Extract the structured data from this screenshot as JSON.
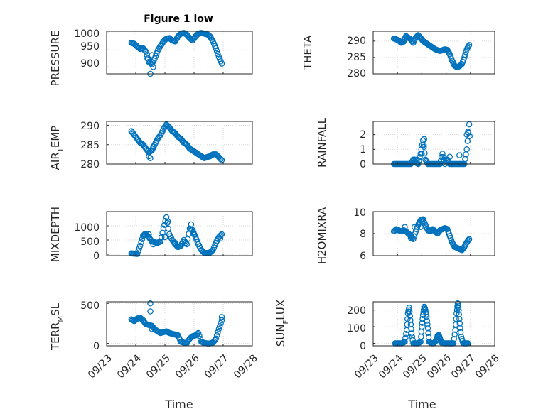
{
  "figure": {
    "title": "Figure 1 low"
  },
  "colors": {
    "marker": "#0072BD",
    "axis": "#262626",
    "grid": "#d9d9d9",
    "background": "#ffffff"
  },
  "chart_data": [
    {
      "id": "pressure",
      "type": "scatter",
      "title": "Figure 1 low",
      "xlabel": "",
      "ylabel": "PRESSURE",
      "xlim": [
        "09/23",
        "09/28"
      ],
      "ylim": [
        880,
        1005
      ],
      "yticks": [
        900,
        950,
        1000
      ],
      "yticklabels": [
        "900",
        "950",
        "1000"
      ],
      "xticks": [
        "09/23",
        "09/24",
        "09/25",
        "09/26",
        "09/27",
        "09/28"
      ],
      "show_xticklabels": false,
      "grid": true,
      "x": [
        0.85,
        0.95,
        1.05,
        1.15,
        1.25,
        1.35,
        1.45,
        1.55,
        1.65,
        1.75,
        1.85,
        1.95,
        2.05,
        2.15,
        2.25,
        2.35,
        2.45,
        2.55,
        2.65,
        2.75,
        2.85,
        2.95,
        3.05,
        3.15,
        3.25,
        3.35,
        3.45,
        3.55,
        3.65,
        3.75,
        3.85,
        3.95
      ],
      "y": [
        971,
        968,
        960,
        953,
        955,
        945,
        915,
        908,
        925,
        948,
        962,
        975,
        983,
        985,
        978,
        975,
        990,
        998,
        1000,
        995,
        985,
        978,
        990,
        998,
        1000,
        998,
        996,
        990,
        975,
        955,
        930,
        910
      ],
      "series": [
        {
          "name": "",
          "x": [
            1.5,
            1.4,
            1.55,
            1.6
          ],
          "y": [
            880,
            925,
            935,
            900
          ]
        }
      ]
    },
    {
      "id": "theta",
      "type": "scatter",
      "xlabel": "",
      "ylabel": "THETA",
      "xlim": [
        "09/23",
        "09/28"
      ],
      "ylim": [
        280,
        293
      ],
      "yticks": [
        280,
        285,
        290
      ],
      "yticklabels": [
        "280",
        "285",
        "290"
      ],
      "xticks": [
        "09/23",
        "09/24",
        "09/25",
        "09/26",
        "09/27",
        "09/28"
      ],
      "show_xticklabels": false,
      "grid": true,
      "x": [
        0.85,
        0.95,
        1.05,
        1.15,
        1.25,
        1.35,
        1.45,
        1.55,
        1.65,
        1.75,
        1.85,
        1.95,
        2.05,
        2.15,
        2.25,
        2.35,
        2.45,
        2.55,
        2.65,
        2.75,
        2.85,
        2.95,
        3.05,
        3.15,
        3.25,
        3.35,
        3.45,
        3.55,
        3.65,
        3.75,
        3.85,
        3.95
      ],
      "y": [
        290.8,
        290.5,
        290.2,
        289.5,
        289.8,
        291.5,
        291.0,
        290.5,
        289.5,
        291.0,
        291.8,
        291.0,
        290.0,
        289.5,
        289.0,
        288.5,
        288.0,
        287.5,
        287.2,
        287.0,
        287.2,
        287.5,
        287.3,
        286.0,
        284.0,
        282.5,
        282.0,
        282.3,
        283.0,
        285.0,
        287.5,
        288.8
      ]
    },
    {
      "id": "air_temp",
      "type": "scatter",
      "xlabel": "",
      "ylabel": "AIR_TEMP",
      "xlim": [
        "09/23",
        "09/28"
      ],
      "ylim": [
        280,
        291
      ],
      "yticks": [
        280,
        285,
        290
      ],
      "yticklabels": [
        "280",
        "285",
        "290"
      ],
      "xticks": [
        "09/23",
        "09/24",
        "09/25",
        "09/26",
        "09/27",
        "09/28"
      ],
      "show_xticklabels": false,
      "grid": true,
      "x": [
        0.85,
        0.95,
        1.05,
        1.15,
        1.25,
        1.35,
        1.45,
        1.55,
        1.65,
        1.75,
        1.85,
        1.95,
        2.05,
        2.15,
        2.25,
        2.35,
        2.45,
        2.55,
        2.65,
        2.75,
        2.85,
        2.95,
        3.05,
        3.15,
        3.25,
        3.35,
        3.45,
        3.55,
        3.65,
        3.75,
        3.85,
        3.95
      ],
      "y": [
        288.5,
        287.5,
        286.5,
        285.5,
        285.0,
        284.0,
        283.0,
        283.5,
        285.0,
        286.5,
        287.5,
        289.0,
        290.2,
        289.5,
        288.5,
        288.0,
        287.0,
        286.5,
        285.5,
        285.0,
        284.0,
        283.5,
        283.0,
        282.5,
        282.0,
        281.5,
        281.8,
        282.0,
        282.5,
        282.5,
        281.8,
        281.0
      ],
      "series": [
        {
          "name": "",
          "x": [
            1.45,
            1.5,
            1.6
          ],
          "y": [
            282.0,
            281.5,
            284.5
          ]
        }
      ]
    },
    {
      "id": "rainfall",
      "type": "scatter",
      "xlabel": "",
      "ylabel": "RAINFALL",
      "xlim": [
        "09/23",
        "09/28"
      ],
      "ylim": [
        0,
        2.9
      ],
      "yticks": [
        0,
        1,
        2
      ],
      "yticklabels": [
        "0",
        "1",
        "2"
      ],
      "xticks": [
        "09/23",
        "09/24",
        "09/25",
        "09/26",
        "09/27",
        "09/28"
      ],
      "show_xticklabels": false,
      "grid": true,
      "x": [
        0.85,
        0.95,
        1.05,
        1.15,
        1.25,
        1.35,
        1.45,
        1.55,
        1.65,
        1.75,
        1.85,
        1.95,
        2.05,
        2.15,
        2.25,
        2.35,
        2.45,
        2.55,
        2.65,
        2.75,
        2.85,
        2.95,
        3.05,
        3.15,
        3.25,
        3.35,
        3.45,
        3.55,
        3.65,
        3.75,
        3.85,
        3.95
      ],
      "y": [
        0,
        0,
        0,
        0,
        0,
        0,
        0,
        0,
        0.3,
        0.1,
        0,
        0.7,
        1.6,
        0.3,
        0,
        0,
        0,
        0,
        0,
        0,
        0.7,
        0,
        0.3,
        0,
        0,
        0,
        0,
        0,
        0,
        0,
        1.0,
        2.7
      ],
      "series": [
        {
          "name": "",
          "x": [
            1.7,
            1.8,
            2.0,
            2.08,
            2.1,
            2.9,
            3.15,
            3.55,
            3.85,
            3.9,
            3.97
          ],
          "y": [
            0.3,
            0.3,
            0.7,
            1.3,
            1.7,
            0.3,
            0.5,
            0.6,
            2.0,
            2.2,
            1.9
          ]
        }
      ]
    },
    {
      "id": "mixdepth",
      "type": "scatter",
      "xlabel": "",
      "ylabel": "MIXDEPTH",
      "xlim": [
        "09/23",
        "09/28"
      ],
      "ylim": [
        -50,
        1500
      ],
      "yticks": [
        0,
        500,
        1000
      ],
      "yticklabels": [
        "0",
        "500",
        "1000"
      ],
      "xticks": [
        "09/23",
        "09/24",
        "09/25",
        "09/26",
        "09/27",
        "09/28"
      ],
      "show_xticklabels": false,
      "grid": true,
      "x": [
        0.85,
        0.95,
        1.05,
        1.15,
        1.25,
        1.35,
        1.45,
        1.55,
        1.65,
        1.75,
        1.85,
        1.95,
        2.05,
        2.15,
        2.25,
        2.35,
        2.45,
        2.55,
        2.65,
        2.75,
        2.85,
        2.95,
        3.05,
        3.15,
        3.25,
        3.35,
        3.45,
        3.55,
        3.65,
        3.75,
        3.85,
        3.95
      ],
      "y": [
        30,
        20,
        10,
        300,
        650,
        700,
        600,
        450,
        420,
        400,
        450,
        900,
        1300,
        700,
        500,
        350,
        250,
        300,
        500,
        350,
        900,
        850,
        600,
        350,
        150,
        50,
        40,
        60,
        150,
        400,
        600,
        700
      ],
      "series": [
        {
          "name": "",
          "x": [
            1.3,
            1.45,
            1.6,
            2.0,
            2.1,
            2.35,
            2.9,
            3.0,
            3.9
          ],
          "y": [
            700,
            700,
            350,
            600,
            1150,
            400,
            1050,
            700,
            550
          ]
        }
      ]
    },
    {
      "id": "h2omixra",
      "type": "scatter",
      "xlabel": "",
      "ylabel": "H2OMIXRA",
      "xlim": [
        "09/23",
        "09/28"
      ],
      "ylim": [
        6,
        10
      ],
      "yticks": [
        6,
        8,
        10
      ],
      "yticklabels": [
        "6",
        "8",
        "10"
      ],
      "xticks": [
        "09/23",
        "09/24",
        "09/25",
        "09/26",
        "09/27",
        "09/28"
      ],
      "show_xticklabels": false,
      "grid": true,
      "x": [
        0.85,
        0.95,
        1.05,
        1.15,
        1.25,
        1.35,
        1.45,
        1.55,
        1.65,
        1.75,
        1.85,
        1.95,
        2.05,
        2.15,
        2.25,
        2.35,
        2.45,
        2.55,
        2.65,
        2.75,
        2.85,
        2.95,
        3.05,
        3.15,
        3.25,
        3.35,
        3.45,
        3.55,
        3.65,
        3.75,
        3.85,
        3.95
      ],
      "y": [
        8.2,
        8.4,
        8.3,
        8.2,
        8.3,
        8.2,
        8.0,
        7.8,
        7.5,
        8.2,
        8.8,
        9.2,
        9.3,
        8.8,
        8.3,
        8.2,
        8.4,
        8.2,
        8.0,
        8.3,
        8.4,
        8.5,
        8.4,
        7.8,
        7.2,
        6.8,
        6.7,
        6.6,
        6.5,
        6.8,
        7.2,
        7.5
      ],
      "series": [
        {
          "name": "",
          "x": [
            1.3,
            1.55,
            1.7,
            1.95
          ],
          "y": [
            8.6,
            7.6,
            8.6,
            8.6
          ]
        }
      ]
    },
    {
      "id": "terr_msl",
      "type": "scatter",
      "xlabel": "Time",
      "ylabel": "TERR_MSL",
      "xlim": [
        "09/23",
        "09/28"
      ],
      "ylim": [
        -30,
        520
      ],
      "yticks": [
        0,
        500
      ],
      "yticklabels": [
        "0",
        "500"
      ],
      "xticks": [
        "09/23",
        "09/24",
        "09/25",
        "09/26",
        "09/27",
        "09/28"
      ],
      "show_xticklabels": true,
      "grid": true,
      "x": [
        0.85,
        0.95,
        1.05,
        1.15,
        1.25,
        1.35,
        1.45,
        1.55,
        1.65,
        1.75,
        1.85,
        1.95,
        2.05,
        2.15,
        2.25,
        2.35,
        2.45,
        2.55,
        2.65,
        2.75,
        2.85,
        2.95,
        3.05,
        3.15,
        3.25,
        3.35,
        3.45,
        3.55,
        3.65,
        3.75,
        3.85,
        3.95
      ],
      "y": [
        300,
        280,
        310,
        320,
        290,
        240,
        230,
        220,
        180,
        150,
        130,
        140,
        150,
        130,
        120,
        110,
        100,
        20,
        10,
        5,
        60,
        90,
        100,
        130,
        20,
        5,
        0,
        0,
        10,
        60,
        180,
        290
      ],
      "series": [
        {
          "name": "",
          "x": [
            1.5,
            1.5,
            1.55,
            3.95
          ],
          "y": [
            500,
            400,
            180,
            330
          ]
        }
      ]
    },
    {
      "id": "sun_flux",
      "type": "scatter",
      "xlabel": "Time",
      "ylabel": "SUN_FLUX",
      "xlim": [
        "09/23",
        "09/28"
      ],
      "ylim": [
        -15,
        250
      ],
      "yticks": [
        0,
        100,
        200
      ],
      "yticklabels": [
        "0",
        "100",
        "200"
      ],
      "xticks": [
        "09/23",
        "09/24",
        "09/25",
        "09/26",
        "09/27",
        "09/28"
      ],
      "show_xticklabels": true,
      "grid": true,
      "x": [
        0.9,
        1.0,
        1.1,
        1.2,
        1.3,
        1.38,
        1.43,
        1.48,
        1.53,
        1.58,
        1.65,
        1.75,
        1.85,
        1.95,
        2.0,
        2.05,
        2.1,
        2.15,
        2.2,
        2.25,
        2.3,
        2.4,
        2.5,
        2.6,
        2.65,
        2.7,
        2.75,
        2.8,
        2.9,
        3.0,
        3.1,
        3.2,
        3.3,
        3.38,
        3.43,
        3.48,
        3.52,
        3.56,
        3.62,
        3.7,
        3.8,
        3.9
      ],
      "y": [
        0,
        0,
        0,
        0,
        10,
        80,
        180,
        215,
        140,
        60,
        0,
        0,
        0,
        10,
        100,
        170,
        220,
        200,
        160,
        90,
        10,
        0,
        0,
        20,
        45,
        50,
        30,
        5,
        0,
        0,
        0,
        0,
        0,
        80,
        180,
        240,
        200,
        120,
        40,
        0,
        0,
        0
      ]
    }
  ],
  "subplots": {
    "pressure": {
      "ylabel": "PRESSURE",
      "yticks": [
        "900",
        "950",
        "1000"
      ]
    },
    "theta": {
      "ylabel": "THETA",
      "yticks": [
        "280",
        "285",
        "290"
      ]
    },
    "air_temp": {
      "ylabel_main": "AIR",
      "ylabel_sub": "T",
      "ylabel_rest": "EMP",
      "yticks": [
        "280",
        "285",
        "290"
      ]
    },
    "rainfall": {
      "ylabel": "RAINFALL",
      "yticks": [
        "0",
        "1",
        "2"
      ]
    },
    "mixdepth": {
      "ylabel": "MIXDEPTH",
      "yticks": [
        "0",
        "500",
        "1000"
      ]
    },
    "h2omixra": {
      "ylabel": "H2OMIXRA",
      "yticks": [
        "6",
        "8",
        "10"
      ]
    },
    "terr_msl": {
      "ylabel_main": "TERR",
      "ylabel_sub": "M",
      "ylabel_rest": "SL",
      "yticks": [
        "0",
        "500"
      ],
      "xlabel": "Time",
      "xticks": [
        "09/23",
        "09/24",
        "09/25",
        "09/26",
        "09/27",
        "09/28"
      ]
    },
    "sun_flux": {
      "ylabel_main": "SUN",
      "ylabel_sub": "F",
      "ylabel_rest": "LUX",
      "yticks": [
        "0",
        "100",
        "200"
      ],
      "xlabel": "Time",
      "xticks": [
        "09/23",
        "09/24",
        "09/25",
        "09/26",
        "09/27",
        "09/28"
      ]
    }
  }
}
